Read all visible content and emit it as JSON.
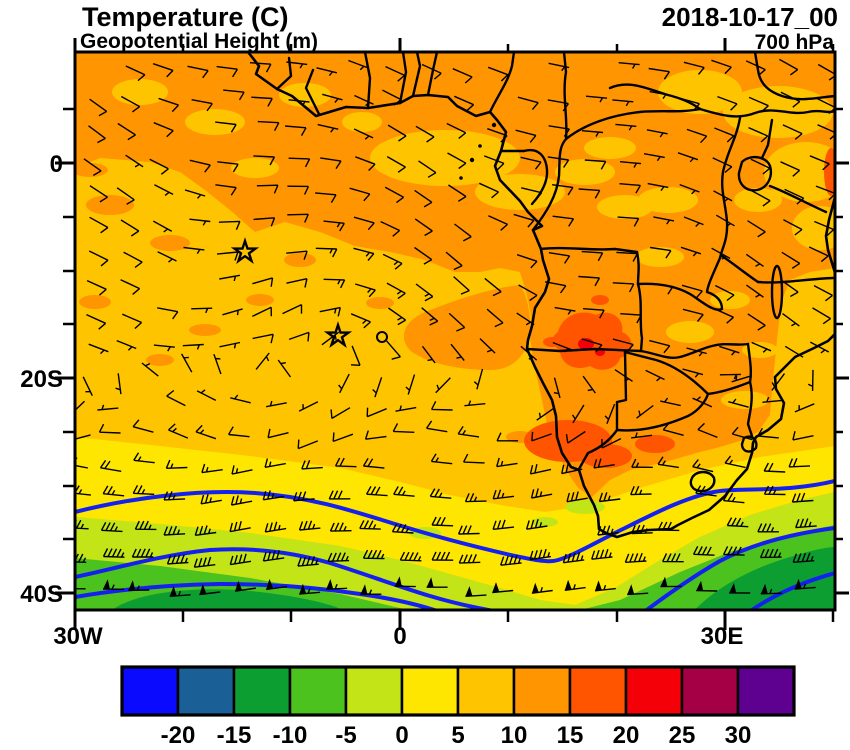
{
  "header": {
    "title": "Temperature (C)",
    "subtitle": "Geopotential Height (m)",
    "datetime": "2018-10-17_00",
    "level": "700 hPa"
  },
  "map": {
    "y_axis": {
      "tick_labels": [
        "0",
        "20S",
        "40S"
      ]
    },
    "x_axis": {
      "tick_labels": [
        "30W",
        "0",
        "30E"
      ]
    },
    "markers": {
      "stars": [
        "Ascension Island",
        "St Helena"
      ],
      "circle": "small open circle marker"
    }
  },
  "palette": {
    "blue": "#0a0aff",
    "steelblue": "#1a6096",
    "green": "#0d9e32",
    "lightgreen": "#4cc21f",
    "yellowgreen": "#c3e517",
    "yellow": "#ffe600",
    "gold": "#ffc400",
    "orange": "#ff9500",
    "orangered": "#ff5500",
    "red": "#f40008",
    "crimson": "#a50045",
    "purple": "#5e0090",
    "contour": "#1420f0",
    "barb": "#000000",
    "frame": "#000000"
  },
  "colorbar": {
    "colors": [
      "#0a0aff",
      "#1a6096",
      "#0d9e32",
      "#4cc21f",
      "#c3e517",
      "#ffe600",
      "#ffc400",
      "#ff9500",
      "#ff5500",
      "#f40008",
      "#a50045",
      "#5e0090"
    ],
    "boundary_labels": [
      "-20",
      "-15",
      "-10",
      "-5",
      "0",
      "5",
      "10",
      "15",
      "20",
      "25",
      "30"
    ]
  },
  "chart_data": {
    "type": "heatmap",
    "title": "Temperature (C)",
    "overlay_field": "Geopotential Height (m)",
    "wind_overlay": "wind barbs",
    "valid_time": "2018-10-17_00",
    "level": "700 hPa",
    "x_axis": {
      "tick_labels": [
        "30W",
        "0",
        "30E"
      ],
      "minor_tick_deg": 10,
      "range": [
        "30W",
        "40E"
      ]
    },
    "y_axis": {
      "tick_labels": [
        "0",
        "20S",
        "40S"
      ],
      "minor_tick_deg": 5,
      "range": [
        "10N",
        "41.5S"
      ]
    },
    "temperature_boundaries_c": [
      -20,
      -15,
      -10,
      -5,
      0,
      5,
      10,
      15,
      20,
      25,
      30
    ],
    "palette_hex": [
      "#0a0aff",
      "#1a6096",
      "#0d9e32",
      "#4cc21f",
      "#c3e517",
      "#ffe600",
      "#ffc400",
      "#ff9500",
      "#ff5500",
      "#f40008",
      "#a50045",
      "#5e0090"
    ],
    "regions": [
      {
        "area": "northern tropics and central/southern African interior",
        "temp_c": "10 to 15",
        "color": "orange"
      },
      {
        "area": "hot spot over southern Angola / SW DRC",
        "temp_c": "15 to 25",
        "color": "orange-red with small red core"
      },
      {
        "area": "subtropical South Atlantic and Mozambique Channel",
        "temp_c": "5 to 10",
        "color": "gold"
      },
      {
        "area": "band near 28S-33S",
        "temp_c": "0 to 5",
        "color": "yellow"
      },
      {
        "area": "33S to 42S",
        "temp_c": "-15 to 0",
        "color": "yellow-green / green"
      }
    ],
    "geopotential_contours": "thick blue height contours arcing across 30S-42S, dipping near the South African west coast",
    "wind_summary": "SE trade barbs 5-15 kt in the tropics circulating around the St Helena high; strong westerlies 30-60 kt (flags near 40S) south of 30S",
    "markers": [
      "star at Ascension Island",
      "star at St Helena",
      "small open circle east of St Helena"
    ],
    "grid": false,
    "legend_position": "bottom horizontal colorbar"
  }
}
